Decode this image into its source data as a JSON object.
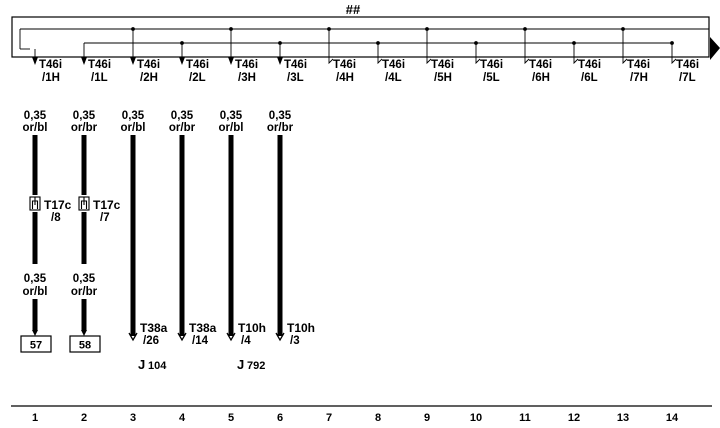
{
  "bus": {
    "label": "##"
  },
  "connectors": [
    {
      "pin": "T46i",
      "sub": "/1H"
    },
    {
      "pin": "T46i",
      "sub": "/1L"
    },
    {
      "pin": "T46i",
      "sub": "/2H"
    },
    {
      "pin": "T46i",
      "sub": "/2L"
    },
    {
      "pin": "T46i",
      "sub": "/3H"
    },
    {
      "pin": "T46i",
      "sub": "/3L"
    },
    {
      "pin": "T46i",
      "sub": "/4H"
    },
    {
      "pin": "T46i",
      "sub": "/4L"
    },
    {
      "pin": "T46i",
      "sub": "/5H"
    },
    {
      "pin": "T46i",
      "sub": "/5L"
    },
    {
      "pin": "T46i",
      "sub": "/6H"
    },
    {
      "pin": "T46i",
      "sub": "/6L"
    },
    {
      "pin": "T46i",
      "sub": "/7H"
    },
    {
      "pin": "T46i",
      "sub": "/7L"
    }
  ],
  "wires": [
    {
      "top_size": "0,35",
      "top_color": "or/bl",
      "mid_pin": "T17c",
      "mid_sub": "/8",
      "bottom_size": "0,35",
      "bottom_color": "or/bl",
      "terminal": "57"
    },
    {
      "top_size": "0,35",
      "top_color": "or/br",
      "mid_pin": "T17c",
      "mid_sub": "/7",
      "bottom_size": "0,35",
      "bottom_color": "or/br",
      "terminal": "58"
    },
    {
      "top_size": "0,35",
      "top_color": "or/bl",
      "end_pin": "T38a",
      "end_sub": "/26"
    },
    {
      "top_size": "0,35",
      "top_color": "or/br",
      "end_pin": "T38a",
      "end_sub": "/14"
    },
    {
      "top_size": "0,35",
      "top_color": "or/bl",
      "end_pin": "T10h",
      "end_sub": "/4"
    },
    {
      "top_size": "0,35",
      "top_color": "or/br",
      "end_pin": "T10h",
      "end_sub": "/3"
    }
  ],
  "components": [
    {
      "prefix": "J",
      "number": "104"
    },
    {
      "prefix": "J",
      "number": "792"
    }
  ],
  "columns": [
    "1",
    "2",
    "3",
    "4",
    "5",
    "6",
    "7",
    "8",
    "9",
    "10",
    "11",
    "12",
    "13",
    "14"
  ]
}
